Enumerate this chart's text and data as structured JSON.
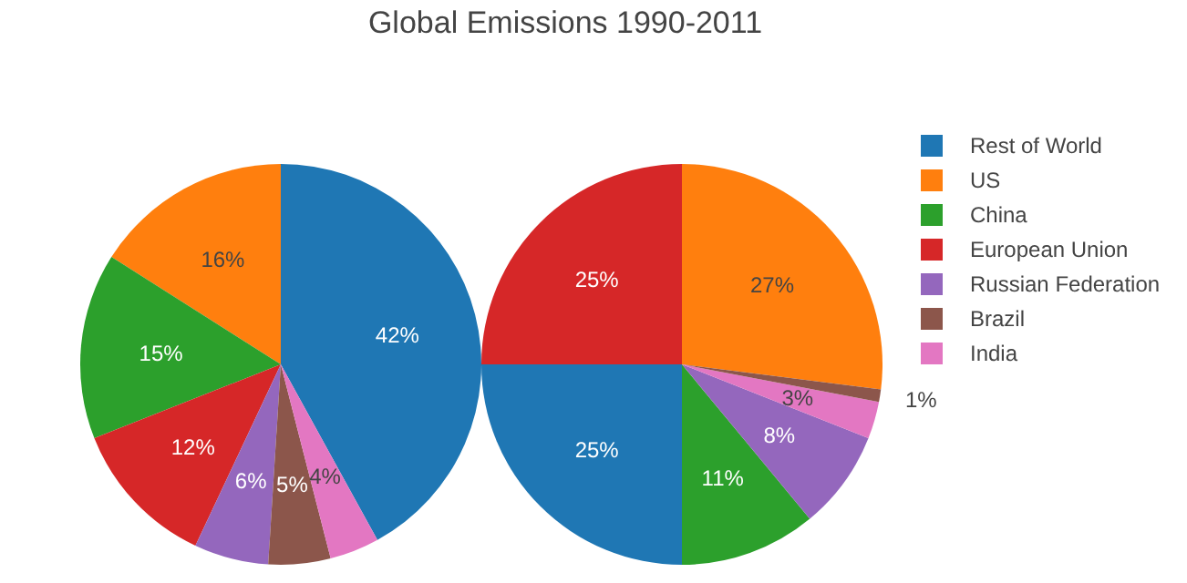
{
  "chart_data": [
    {
      "type": "pie",
      "title": "Global Emissions 1990-2011",
      "legend": "right",
      "categories": [
        "Rest of World",
        "US",
        "China",
        "European Union",
        "Russian Federation",
        "Brazil",
        "India"
      ],
      "values": [
        42,
        16,
        15,
        12,
        6,
        5,
        4
      ],
      "value_labels": [
        "42%",
        "16%",
        "15%",
        "12%",
        "6%",
        "5%",
        "4%"
      ],
      "colors": [
        "#1f77b4",
        "#ff7f0e",
        "#2ca02c",
        "#d62728",
        "#9467bd",
        "#8c564b",
        "#e377c2"
      ]
    },
    {
      "type": "pie",
      "categories": [
        null,
        null,
        null,
        null,
        null,
        null,
        null
      ],
      "values": [
        27,
        25,
        25,
        11,
        8,
        3,
        1
      ],
      "value_labels": [
        "27%",
        "25%",
        "25%",
        "11%",
        "8%",
        "3%",
        "1%"
      ],
      "colors": [
        "#ff7f0e",
        "#d62728",
        "#1f77b4",
        "#2ca02c",
        "#9467bd",
        "#e377c2",
        "#8c564b"
      ]
    }
  ]
}
